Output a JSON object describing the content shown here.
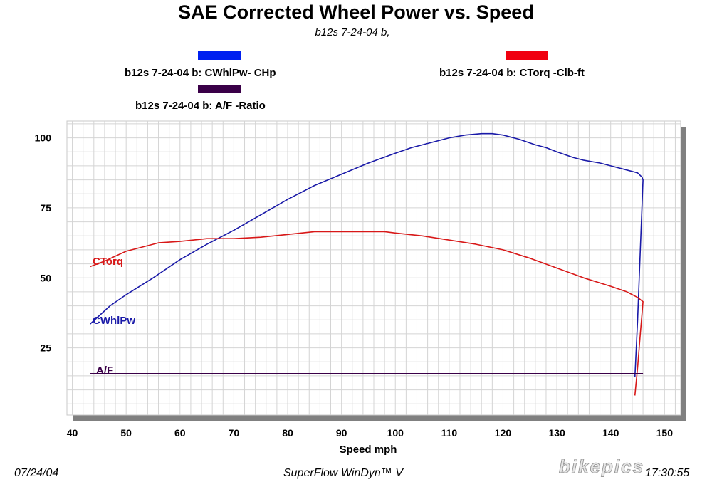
{
  "header": {
    "title": "SAE Corrected Wheel Power vs. Speed",
    "subtitle": "b12s 7-24-04 b,"
  },
  "legend": [
    {
      "label": "b12s 7-24-04 b: CWhlPw- CHp",
      "color": "#0020f0"
    },
    {
      "label": "b12s 7-24-04 b: CTorq -Clb-ft",
      "color": "#f00010"
    },
    {
      "label": "b12s 7-24-04 b:  A/F  -Ratio",
      "color": "#3a0048"
    }
  ],
  "footer": {
    "date": "07/24/04",
    "software": "SuperFlow WinDyn™ V",
    "time": "17:30:55",
    "watermark": "bikepics"
  },
  "chart_data": {
    "type": "line",
    "title": "SAE Corrected Wheel Power vs. Speed",
    "subtitle": "b12s 7-24-04 b,",
    "xlabel": "Speed   mph",
    "ylabel": "",
    "xlim": [
      39,
      153
    ],
    "ylim": [
      1,
      106
    ],
    "xticks": [
      40,
      50,
      60,
      70,
      80,
      90,
      100,
      110,
      120,
      130,
      140,
      150
    ],
    "yticks": [
      25,
      50,
      75,
      100
    ],
    "grid": true,
    "series": [
      {
        "name": "CWhlPw",
        "color": "#1a1aa8",
        "x": [
          43.3,
          45,
          47,
          50,
          55,
          60,
          65,
          70,
          75,
          80,
          85,
          90,
          95,
          100,
          103,
          106,
          110,
          113,
          116,
          118,
          120,
          123,
          126,
          128,
          130,
          133,
          135,
          138,
          140,
          143,
          145,
          145.8,
          146,
          145.5,
          145,
          144.5
        ],
        "y": [
          33.5,
          36.5,
          40,
          44,
          50,
          56.5,
          62,
          67,
          72.5,
          78,
          83,
          87,
          91,
          94.5,
          96.5,
          98,
          100,
          101,
          101.5,
          101.5,
          101,
          99.5,
          97.5,
          96.5,
          95,
          93,
          92,
          91,
          90,
          88.5,
          87.5,
          86,
          85,
          60,
          35,
          14.5
        ]
      },
      {
        "name": "CTorq",
        "color": "#d81818",
        "x": [
          43.3,
          46,
          50,
          53,
          56,
          60,
          65,
          70,
          75,
          80,
          85,
          90,
          95,
          98,
          100,
          105,
          110,
          115,
          120,
          125,
          130,
          135,
          140,
          143,
          145,
          146,
          145.5,
          145,
          144.5
        ],
        "y": [
          54,
          56,
          59.5,
          61,
          62.5,
          63,
          64,
          64,
          64.5,
          65.5,
          66.5,
          66.5,
          66.5,
          66.5,
          66,
          65,
          63.5,
          62,
          60,
          57,
          53.5,
          50,
          47,
          45,
          43,
          41.5,
          30,
          18,
          8
        ]
      },
      {
        "name": "A/F",
        "color": "#3a0048",
        "x": [
          43.3,
          146
        ],
        "y": [
          15.8,
          15.8
        ]
      }
    ]
  },
  "series_labels": {
    "torque": "CTorq",
    "power": "CWhlPw",
    "af": "A/F"
  }
}
